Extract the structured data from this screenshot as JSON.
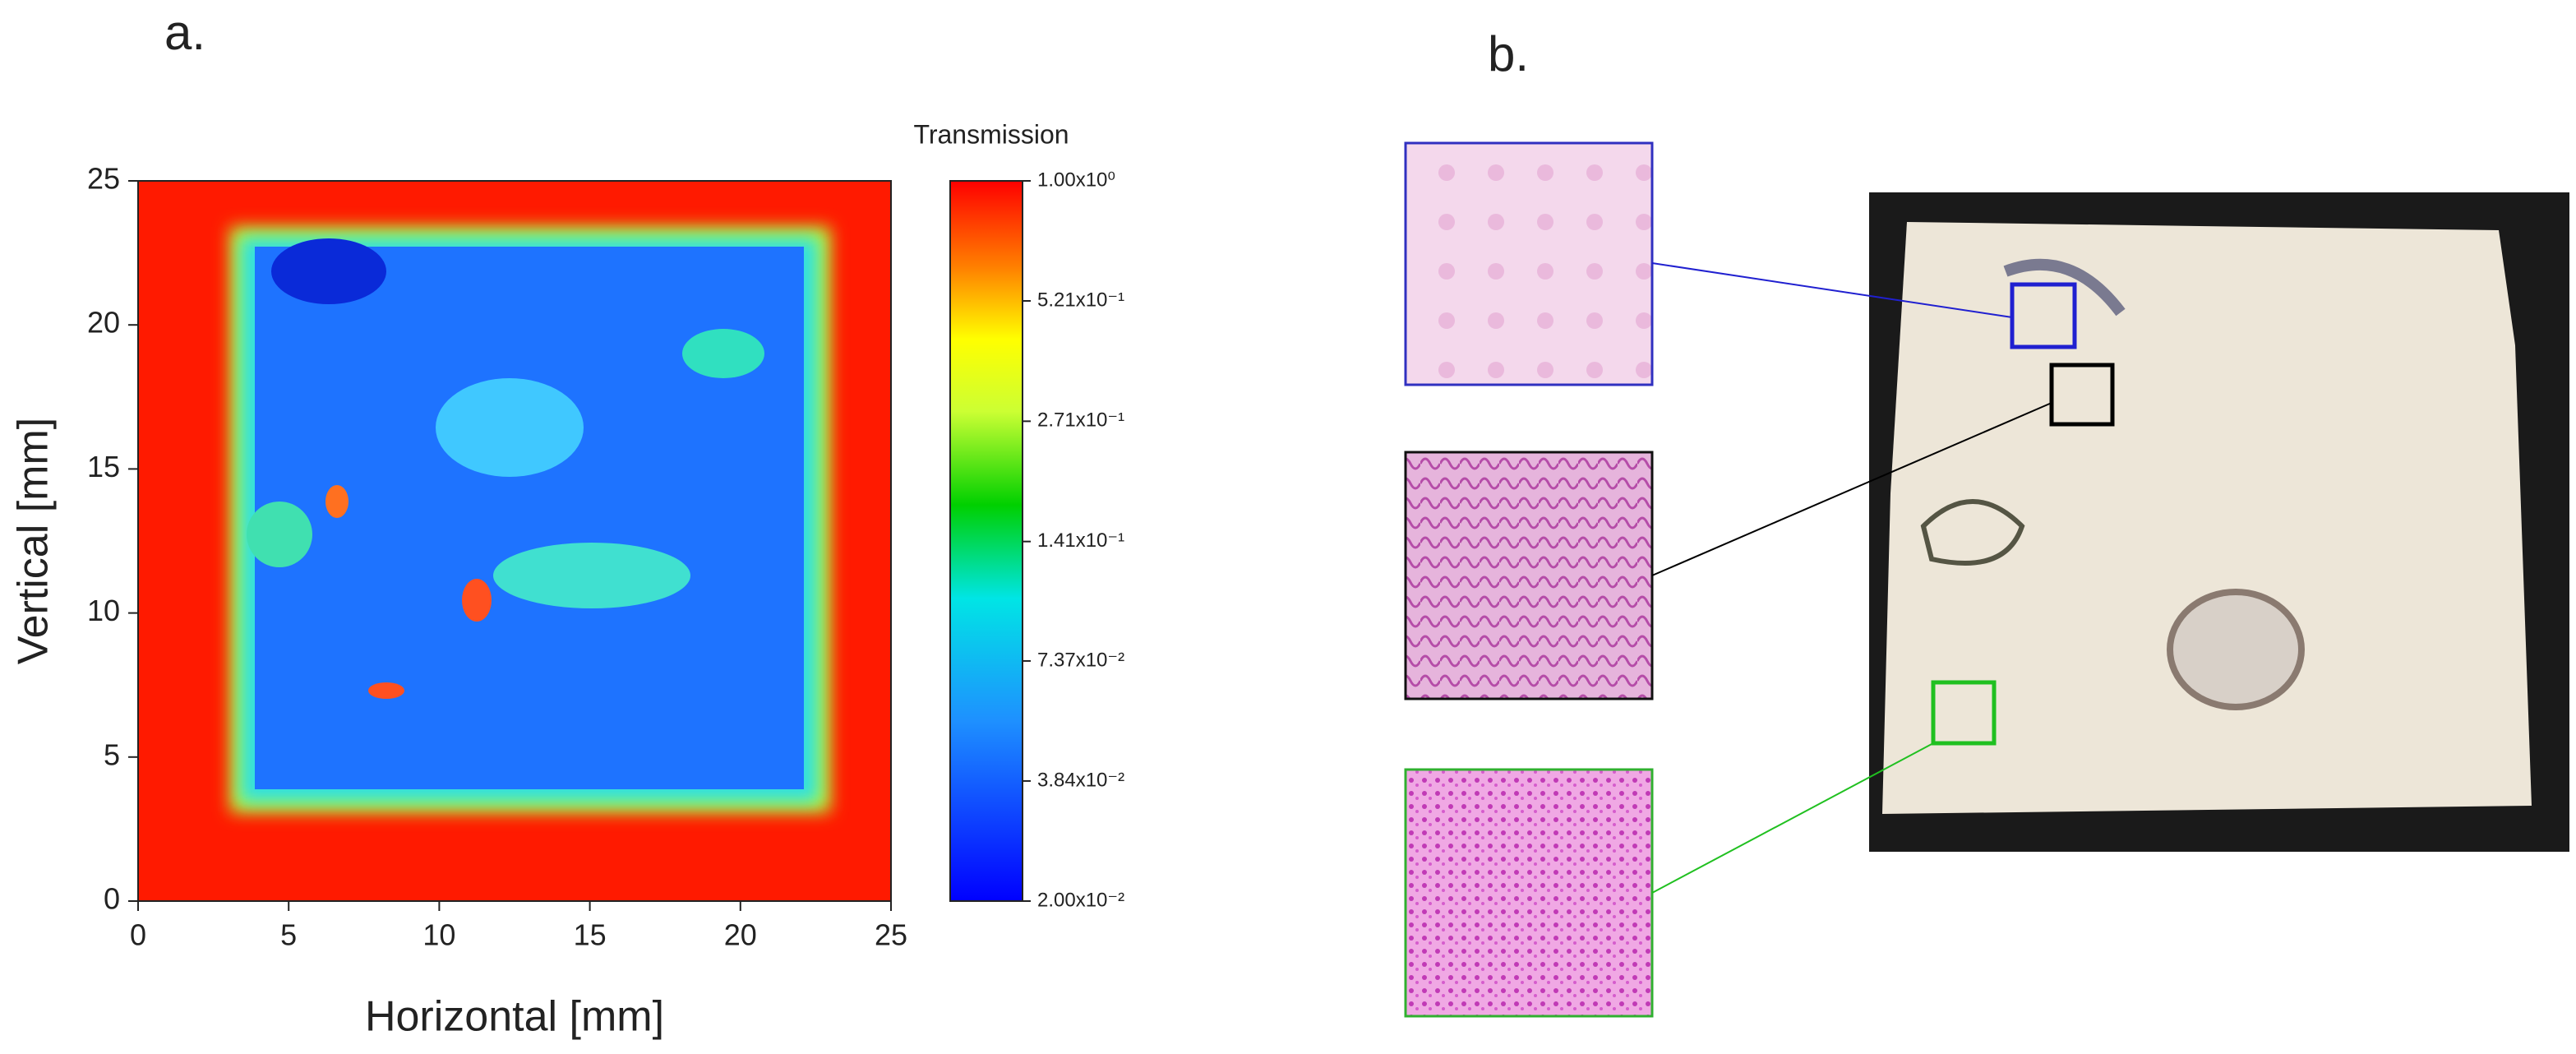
{
  "panel_a": {
    "label": "a.",
    "x_axis_label": "Horizontal [mm]",
    "y_axis_label": "Vertical [mm]",
    "xlim": [
      0,
      25
    ],
    "ylim": [
      0,
      25
    ],
    "xticks": [
      0,
      5,
      10,
      15,
      20,
      25
    ],
    "yticks": [
      0,
      5,
      10,
      15,
      20,
      25
    ],
    "colorbar": {
      "title": "Transmission",
      "scale": "log",
      "lim": [
        0.02,
        1
      ],
      "ticks": [
        {
          "value": 1,
          "label": "1.00x10⁰"
        },
        {
          "value": 0.521,
          "label": "5.21x10⁻¹"
        },
        {
          "value": 0.271,
          "label": "2.71x10⁻¹"
        },
        {
          "value": 0.141,
          "label": "1.41x10⁻¹"
        },
        {
          "value": 0.0737,
          "label": "7.37x10⁻²"
        },
        {
          "value": 0.0384,
          "label": "3.84x10⁻²"
        },
        {
          "value": 0.02,
          "label": "2.00x10⁻²"
        }
      ]
    }
  },
  "panel_b": {
    "label": "b."
  }
}
